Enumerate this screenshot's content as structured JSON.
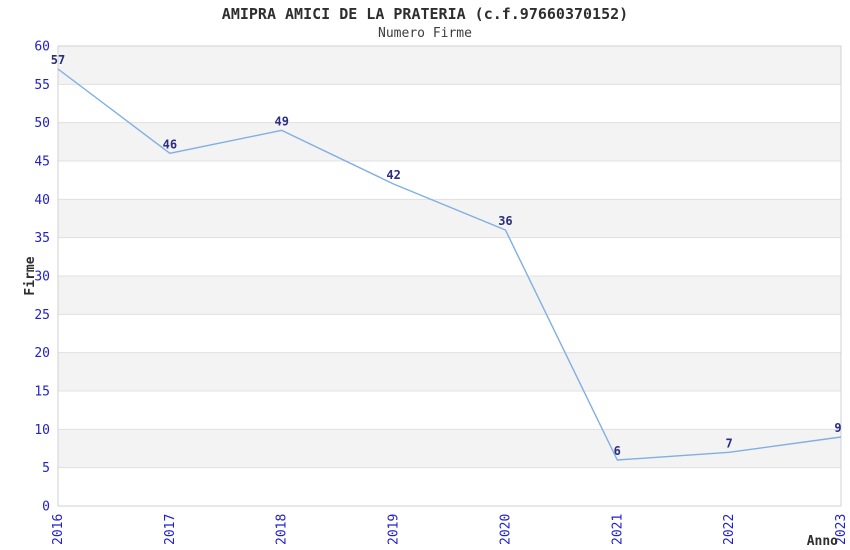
{
  "chart_data": {
    "type": "line",
    "title": "AMIPRA AMICI DE LA PRATERIA (c.f.97660370152)",
    "subtitle": "Numero Firme",
    "x": [
      2016,
      2017,
      2018,
      2019,
      2020,
      2021,
      2022,
      2023
    ],
    "series": [
      {
        "name": "Numero Firme",
        "values": [
          57,
          46,
          49,
          42,
          36,
          6,
          7,
          9
        ]
      }
    ],
    "data_labels": [
      57,
      46,
      49,
      42,
      36,
      6,
      7,
      9
    ],
    "xlabel": "Anno",
    "ylabel": "Firme",
    "ylim": [
      0,
      60
    ],
    "ytick_step": 5,
    "yticks": [
      0,
      5,
      10,
      15,
      20,
      25,
      30,
      35,
      40,
      45,
      50,
      55,
      60
    ],
    "grid": "horizontal gridlines with alternating shaded bands",
    "legend": "none",
    "colors": {
      "line": "#7fafe3",
      "tick_label": "#2121cc",
      "data_label": "#2d2d80",
      "band": "#f3f3f3",
      "grid": "#e0e0e0",
      "border": "#d2d2d2",
      "text": "#2e2e2e"
    }
  }
}
